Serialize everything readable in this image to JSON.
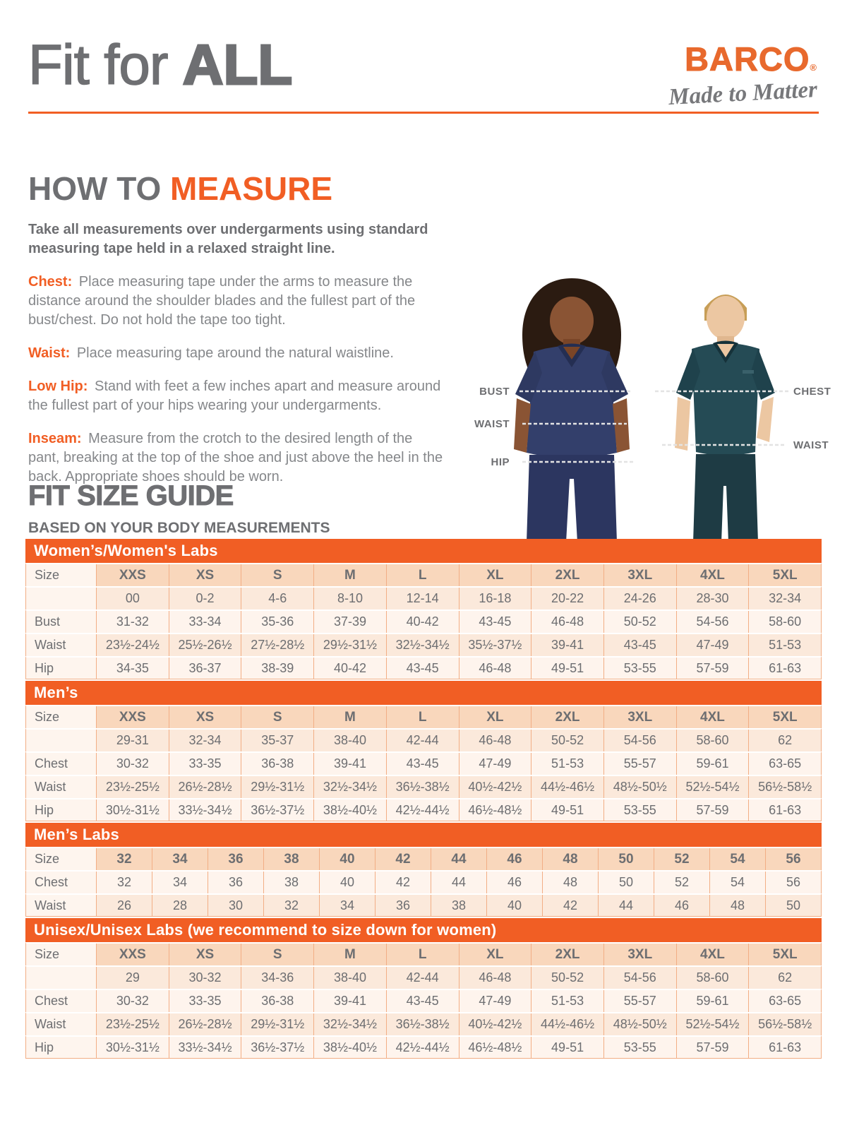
{
  "header": {
    "title_regular": "Fit for ",
    "title_bold": "ALL",
    "logo_brand": "BARCO",
    "logo_registered": "®",
    "logo_tagline": "Made to Matter"
  },
  "how_to_measure": {
    "heading_gray": "HOW TO ",
    "heading_orange": "MEASURE",
    "intro": "Take all measurements over undergarments using standard measuring tape held in a relaxed straight line.",
    "items": [
      {
        "label": "Chest:",
        "text": "Place measuring tape under the arms to measure the distance around the shoulder blades and the fullest part of the bust/chest. Do not hold the tape too tight."
      },
      {
        "label": "Waist:",
        "text": "Place measuring tape around the natural waistline."
      },
      {
        "label": "Low Hip:",
        "text": "Stand with feet a few inches apart and measure around the fullest part of your hips wearing your undergarments."
      },
      {
        "label": "Inseam:",
        "text": "Measure from the crotch to the desired length of the pant, breaking at the top of the shoe and just above the heel in the back. Appropriate shoes should be worn."
      }
    ]
  },
  "figure": {
    "woman_labels": [
      "BUST",
      "WAIST",
      "HIP"
    ],
    "man_labels": [
      "CHEST",
      "WAIST"
    ]
  },
  "size_guide": {
    "heading": "FIT SIZE GUIDE",
    "subheading": "BASED ON YOUR BODY MEASUREMENTS",
    "tables": [
      {
        "id": "womens",
        "band": "Women’s/Women's Labs",
        "row_label_header": "Size",
        "columns": [
          "XXS",
          "XS",
          "S",
          "M",
          "L",
          "XL",
          "2XL",
          "3XL",
          "4XL",
          "5XL"
        ],
        "subrow": [
          "00",
          "0-2",
          "4-6",
          "8-10",
          "12-14",
          "16-18",
          "20-22",
          "24-26",
          "28-30",
          "32-34"
        ],
        "rows": [
          {
            "label": "Bust",
            "values": [
              "31-32",
              "33-34",
              "35-36",
              "37-39",
              "40-42",
              "43-45",
              "46-48",
              "50-52",
              "54-56",
              "58-60"
            ]
          },
          {
            "label": "Waist",
            "values": [
              "23½-24½",
              "25½-26½",
              "27½-28½",
              "29½-31½",
              "32½-34½",
              "35½-37½",
              "39-41",
              "43-45",
              "47-49",
              "51-53"
            ]
          },
          {
            "label": "Hip",
            "values": [
              "34-35",
              "36-37",
              "38-39",
              "40-42",
              "43-45",
              "46-48",
              "49-51",
              "53-55",
              "57-59",
              "61-63"
            ]
          }
        ]
      },
      {
        "id": "mens",
        "band": "Men’s",
        "row_label_header": "Size",
        "columns": [
          "XXS",
          "XS",
          "S",
          "M",
          "L",
          "XL",
          "2XL",
          "3XL",
          "4XL",
          "5XL"
        ],
        "subrow": [
          "29-31",
          "32-34",
          "35-37",
          "38-40",
          "42-44",
          "46-48",
          "50-52",
          "54-56",
          "58-60",
          "62"
        ],
        "rows": [
          {
            "label": "Chest",
            "values": [
              "30-32",
              "33-35",
              "36-38",
              "39-41",
              "43-45",
              "47-49",
              "51-53",
              "55-57",
              "59-61",
              "63-65"
            ]
          },
          {
            "label": "Waist",
            "values": [
              "23½-25½",
              "26½-28½",
              "29½-31½",
              "32½-34½",
              "36½-38½",
              "40½-42½",
              "44½-46½",
              "48½-50½",
              "52½-54½",
              "56½-58½"
            ]
          },
          {
            "label": "Hip",
            "values": [
              "30½-31½",
              "33½-34½",
              "36½-37½",
              "38½-40½",
              "42½-44½",
              "46½-48½",
              "49-51",
              "53-55",
              "57-59",
              "61-63"
            ]
          }
        ]
      },
      {
        "id": "mens-labs",
        "band": "Men’s Labs",
        "row_label_header": "Size",
        "columns": [
          "32",
          "34",
          "36",
          "38",
          "40",
          "42",
          "44",
          "46",
          "48",
          "50",
          "52",
          "54",
          "56"
        ],
        "subrow": null,
        "rows": [
          {
            "label": "Chest",
            "values": [
              "32",
              "34",
              "36",
              "38",
              "40",
              "42",
              "44",
              "46",
              "48",
              "50",
              "52",
              "54",
              "56"
            ]
          },
          {
            "label": "Waist",
            "values": [
              "26",
              "28",
              "30",
              "32",
              "34",
              "36",
              "38",
              "40",
              "42",
              "44",
              "46",
              "48",
              "50"
            ]
          }
        ]
      },
      {
        "id": "unisex",
        "band": "Unisex/Unisex Labs (we recommend to size down for women)",
        "row_label_header": "Size",
        "columns": [
          "XXS",
          "XS",
          "S",
          "M",
          "L",
          "XL",
          "2XL",
          "3XL",
          "4XL",
          "5XL"
        ],
        "subrow": [
          "29",
          "30-32",
          "34-36",
          "38-40",
          "42-44",
          "46-48",
          "50-52",
          "54-56",
          "58-60",
          "62"
        ],
        "rows": [
          {
            "label": "Chest",
            "values": [
              "30-32",
              "33-35",
              "36-38",
              "39-41",
              "43-45",
              "47-49",
              "51-53",
              "55-57",
              "59-61",
              "63-65"
            ]
          },
          {
            "label": "Waist",
            "values": [
              "23½-25½",
              "26½-28½",
              "29½-31½",
              "32½-34½",
              "36½-38½",
              "40½-42½",
              "44½-46½",
              "48½-50½",
              "52½-54½",
              "56½-58½"
            ]
          },
          {
            "label": "Hip",
            "values": [
              "30½-31½",
              "33½-34½",
              "36½-37½",
              "38½-40½",
              "42½-44½",
              "46½-48½",
              "49-51",
              "53-55",
              "57-59",
              "61-63"
            ]
          }
        ]
      }
    ]
  },
  "colors": {
    "accent_orange": "#F15E24",
    "logo_orange": "#E8692D",
    "heading_gray": "#6E6F72",
    "body_gray": "#85878A",
    "table_header_bg": "#F9D7BC",
    "table_row_light": "#FEF4ED",
    "table_row_dark": "#FBE9DB",
    "scrub_navy": "#333F6B",
    "scrub_teal": "#254B55"
  }
}
